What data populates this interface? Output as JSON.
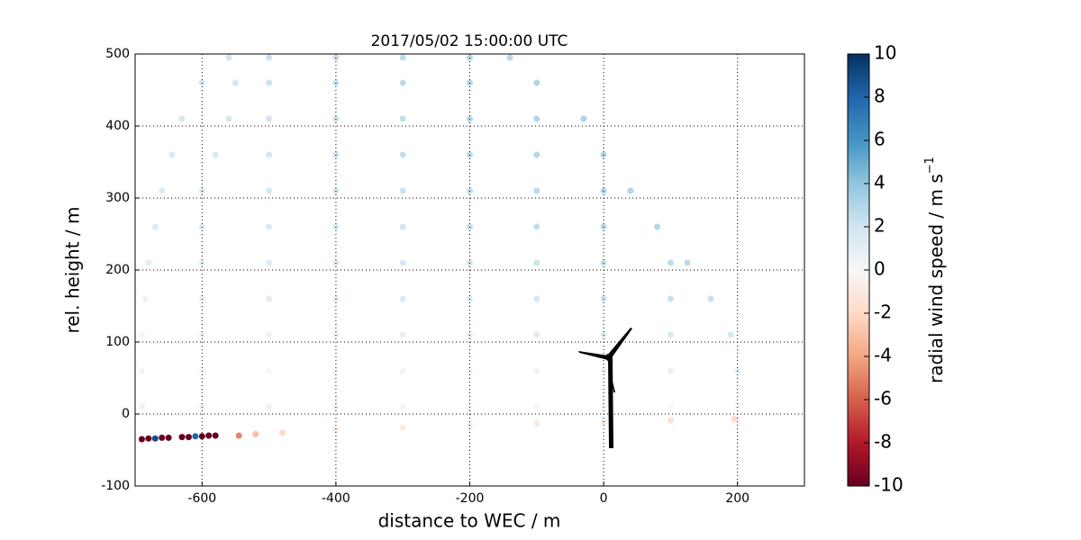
{
  "chart_data": {
    "type": "scatter",
    "title": "2017/05/02 15:00:00 UTC",
    "xlabel": "distance to WEC / m",
    "ylabel": "rel. height / m",
    "xlim": [
      -700,
      300
    ],
    "xticks": [
      -600,
      -400,
      -200,
      0,
      200
    ],
    "ylim": [
      -100,
      500
    ],
    "yticks": [
      -100,
      0,
      100,
      200,
      300,
      400,
      500
    ],
    "grid": true,
    "colormap": "RdBu",
    "colorbar_label": "radial wind speed / m s",
    "colorbar_label_exponent": "−1",
    "clim": [
      -10,
      10
    ],
    "cticks": [
      -10,
      -8,
      -6,
      -4,
      -2,
      0,
      2,
      4,
      6,
      8,
      10
    ],
    "x": [
      -690,
      -680,
      -670,
      -660,
      -650,
      -630,
      -620,
      -610,
      -600,
      -590,
      -580,
      -545,
      -520,
      -480,
      -400,
      -300,
      -200,
      -100,
      0,
      100,
      195,
      -690,
      -600,
      -500,
      -400,
      -300,
      -200,
      -100,
      0,
      100,
      200,
      -690,
      -600,
      -500,
      -400,
      -300,
      -200,
      -100,
      0,
      100,
      200,
      -690,
      -600,
      -500,
      -400,
      -300,
      -200,
      -100,
      0,
      100,
      190,
      -685,
      -600,
      -500,
      -400,
      -300,
      -200,
      -100,
      0,
      100,
      160,
      -680,
      -600,
      -500,
      -400,
      -300,
      -200,
      -100,
      0,
      100,
      125,
      -670,
      -600,
      -500,
      -400,
      -300,
      -200,
      -100,
      0,
      80,
      -660,
      -600,
      -500,
      -400,
      -300,
      -200,
      -100,
      0,
      40,
      -645,
      -580,
      -500,
      -400,
      -300,
      -200,
      -100,
      0,
      -630,
      -560,
      -500,
      -400,
      -300,
      -200,
      -100,
      -30,
      -600,
      -550,
      -500,
      -400,
      -300,
      -200,
      -100,
      -560,
      -500,
      -400,
      -300,
      -200,
      -140
    ],
    "values": [
      -35,
      -34,
      -34,
      -33,
      -33,
      -32,
      -32,
      -31,
      -31,
      -30,
      -30,
      -30,
      -28,
      -26,
      -22,
      -19,
      -16,
      -13,
      -11,
      -9,
      -7,
      10,
      10,
      10,
      10,
      10,
      10,
      10,
      10,
      10,
      10,
      60,
      60,
      60,
      60,
      60,
      60,
      60,
      60,
      60,
      60,
      110,
      110,
      110,
      110,
      110,
      110,
      110,
      110,
      110,
      110,
      160,
      160,
      160,
      160,
      160,
      160,
      160,
      160,
      160,
      160,
      210,
      210,
      210,
      210,
      210,
      210,
      210,
      210,
      210,
      210,
      260,
      260,
      260,
      260,
      260,
      260,
      260,
      260,
      260,
      310,
      310,
      310,
      310,
      310,
      310,
      310,
      310,
      310,
      360,
      360,
      360,
      360,
      360,
      360,
      360,
      360,
      410,
      410,
      410,
      410,
      410,
      410,
      410,
      410,
      460,
      460,
      460,
      460,
      460,
      460,
      460,
      495,
      495,
      495,
      495,
      495,
      495
    ],
    "speeds": [
      -10,
      -10,
      9,
      -10,
      -10,
      -10,
      -10,
      8,
      -10,
      -10,
      -10,
      -5,
      -3,
      -2,
      -1,
      -1,
      -1,
      -1,
      -1,
      -1.5,
      -2,
      -0.6,
      -0.6,
      -0.5,
      -0.5,
      -0.4,
      -0.3,
      -0.2,
      -0.2,
      -0.1,
      0,
      -0.3,
      -0.2,
      -0.1,
      0,
      0.2,
      0.3,
      0.4,
      0.5,
      0.8,
      1,
      0.2,
      0.4,
      0.5,
      0.7,
      0.9,
      1,
      1.2,
      1.4,
      1.6,
      1.8,
      0.6,
      0.8,
      1,
      1.2,
      1.4,
      1.6,
      1.8,
      2,
      2.2,
      2.3,
      1,
      1.1,
      1.3,
      1.5,
      1.8,
      2,
      2.2,
      2.4,
      2.6,
      2.7,
      1.3,
      1.4,
      1.6,
      1.8,
      2,
      2.3,
      2.5,
      2.7,
      2.9,
      1.5,
      1.6,
      1.8,
      2,
      2.2,
      2.5,
      2.7,
      2.9,
      3,
      1.6,
      1.7,
      1.9,
      2.1,
      2.4,
      2.7,
      2.9,
      3,
      1.7,
      1.8,
      2,
      2.2,
      2.5,
      2.8,
      3,
      3.1,
      1.8,
      1.9,
      2.1,
      2.3,
      2.6,
      2.8,
      3,
      2,
      2.1,
      2.3,
      2.5,
      2.7,
      2.8
    ]
  }
}
